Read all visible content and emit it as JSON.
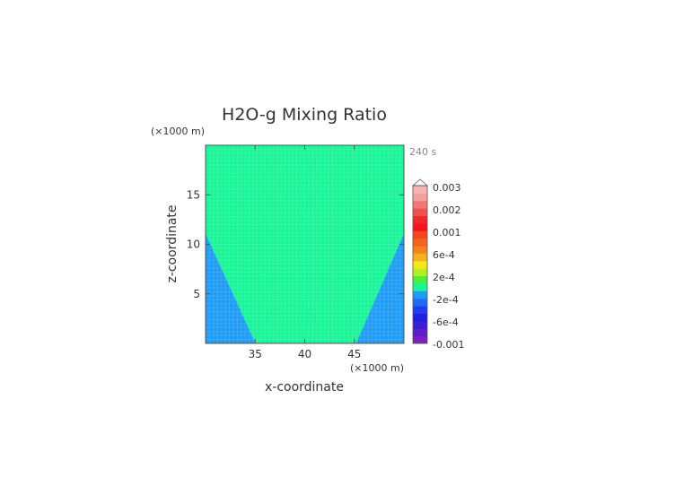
{
  "chart_data": {
    "type": "heatmap",
    "title": "H2O-g Mixing Ratio",
    "xlabel": "x-coordinate",
    "ylabel": "z-coordinate",
    "x_unit": "(×1000 m)",
    "y_unit": "(×1000 m)",
    "time_label": "240 s",
    "xlim": [
      30,
      50
    ],
    "ylim": [
      0,
      20
    ],
    "x_ticks": [
      "35",
      "40",
      "45"
    ],
    "y_ticks": [
      "5",
      "10",
      "15"
    ],
    "grid": false,
    "regions": [
      {
        "name": "center",
        "color": "#18f598",
        "polygon": [
          [
            30,
            20
          ],
          [
            50,
            20
          ],
          [
            50,
            11
          ],
          [
            45.2,
            0
          ],
          [
            35,
            0
          ],
          [
            30,
            11
          ]
        ]
      },
      {
        "name": "left",
        "color": "#1e9cf5",
        "polygon": [
          [
            30,
            0
          ],
          [
            35,
            0
          ],
          [
            30,
            11
          ]
        ]
      },
      {
        "name": "right",
        "color": "#1e9cf5",
        "polygon": [
          [
            45.2,
            0
          ],
          [
            50,
            0
          ],
          [
            50,
            11
          ]
        ]
      }
    ],
    "colorbar": {
      "levels": [
        {
          "color": "#7f1fbf"
        },
        {
          "color": "#5a1fc8"
        },
        {
          "color": "#3b1fd6"
        },
        {
          "color": "#201ee3"
        },
        {
          "color": "#1f3df0"
        },
        {
          "color": "#1e6cf2"
        },
        {
          "color": "#1e9cf5"
        },
        {
          "color": "#18f598"
        },
        {
          "color": "#4cf03a"
        },
        {
          "color": "#b4f01f"
        },
        {
          "color": "#f5e61a"
        },
        {
          "color": "#f5b21c"
        },
        {
          "color": "#f5821e"
        },
        {
          "color": "#f5641e"
        },
        {
          "color": "#f5461e"
        },
        {
          "color": "#f5141e"
        },
        {
          "color": "#f0282d"
        },
        {
          "color": "#f05050"
        },
        {
          "color": "#f07878"
        },
        {
          "color": "#f5a0a0"
        },
        {
          "color": "#f5b4b4"
        }
      ],
      "labels": [
        "0.003",
        "0.002",
        "0.001",
        "6e-4",
        "2e-4",
        "-2e-4",
        "-6e-4",
        "-0.001"
      ]
    }
  }
}
